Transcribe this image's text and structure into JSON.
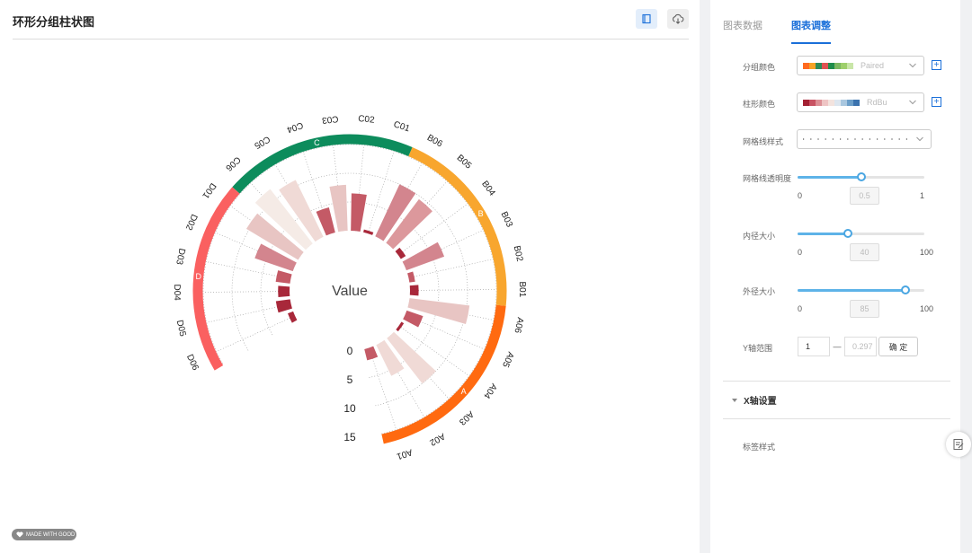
{
  "header": {
    "title": "环形分组柱状图"
  },
  "icons": {
    "template": "notebook-icon",
    "download": "cloud-download-icon",
    "feedback": "edit-note-icon"
  },
  "watermark": {
    "text": "MADE WITH GOOD"
  },
  "panel": {
    "tabs": [
      {
        "label": "图表数据",
        "active": false
      },
      {
        "label": "图表调整",
        "active": true
      }
    ],
    "group_color": {
      "label": "分组颜色",
      "value": "Paired",
      "swatches": [
        "#ff6a1f",
        "#f5a325",
        "#2e8b57",
        "#e05252",
        "#1e8c4a",
        "#7bb860",
        "#9ecf6b",
        "#c9e6a8"
      ]
    },
    "bar_color": {
      "label": "柱形颜色",
      "value": "RdBu",
      "swatches": [
        "#a32033",
        "#c85262",
        "#dc8f95",
        "#eec4c4",
        "#f3e3de",
        "#dde6ef",
        "#a9c7df",
        "#6b9ec8",
        "#3b73ae"
      ]
    },
    "grid_style": {
      "label": "网格线样式"
    },
    "grid_opacity": {
      "label": "网格线透明度",
      "min": "0",
      "max": "1",
      "value": 0.5,
      "display": "0.5"
    },
    "inner_radius": {
      "label": "内径大小",
      "min": "0",
      "max": "100",
      "value": 40,
      "display": "40"
    },
    "outer_radius": {
      "label": "外径大小",
      "min": "0",
      "max": "100",
      "value": 85,
      "display": "85"
    },
    "y_range": {
      "label": "Y轴范围",
      "min": "1",
      "dash": "—",
      "max": "0.297",
      "confirm": "确 定"
    },
    "x_axis_section": {
      "label": "X轴设置"
    },
    "label_style": {
      "label": "标签样式"
    }
  },
  "chart_data": {
    "type": "bar",
    "layout": "radial-grouped",
    "center_label": "Value",
    "ylim": [
      0,
      15
    ],
    "y_ticks": [
      "0",
      "5",
      "10",
      "15"
    ],
    "groups": [
      {
        "name": "A",
        "color": "#ff6a10",
        "categories": [
          "A01",
          "A02",
          "A03",
          "A04",
          "A05",
          "A06"
        ],
        "values": [
          2,
          6,
          10,
          0.5,
          3,
          10.5
        ],
        "bar_colors": [
          "#c45a66",
          "#f0dad6",
          "#f0dad6",
          "#a8283a",
          "#c45a66",
          "#e8c5c3"
        ]
      },
      {
        "name": "B",
        "color": "#f8a62e",
        "categories": [
          "B01",
          "B02",
          "B03",
          "B04",
          "B05",
          "B06"
        ],
        "values": [
          1.5,
          1,
          7,
          1,
          9.5,
          10
        ],
        "bar_colors": [
          "#a8283a",
          "#c45a66",
          "#d3858e",
          "#a8283a",
          "#dc989c",
          "#d3858e"
        ]
      },
      {
        "name": "C",
        "color": "#0d8c5c",
        "categories": [
          "C01",
          "C02",
          "C03",
          "C04",
          "C05",
          "C06"
        ],
        "values": [
          0.5,
          6.5,
          8,
          4.5,
          11,
          12
        ],
        "bar_colors": [
          "#a8283a",
          "#c45a66",
          "#e8c5c3",
          "#c45a66",
          "#f0dad6",
          "#f5ebe6"
        ]
      },
      {
        "name": "D",
        "color": "#fa6060",
        "categories": [
          "D01",
          "D02",
          "D03",
          "D04",
          "D05",
          "D06"
        ],
        "values": [
          10.5,
          7,
          2.5,
          2,
          2.5,
          1
        ],
        "bar_colors": [
          "#e8c5c3",
          "#d3858e",
          "#c45a66",
          "#a8283a",
          "#a8283a",
          "#a8283a"
        ]
      }
    ],
    "grid": true
  }
}
